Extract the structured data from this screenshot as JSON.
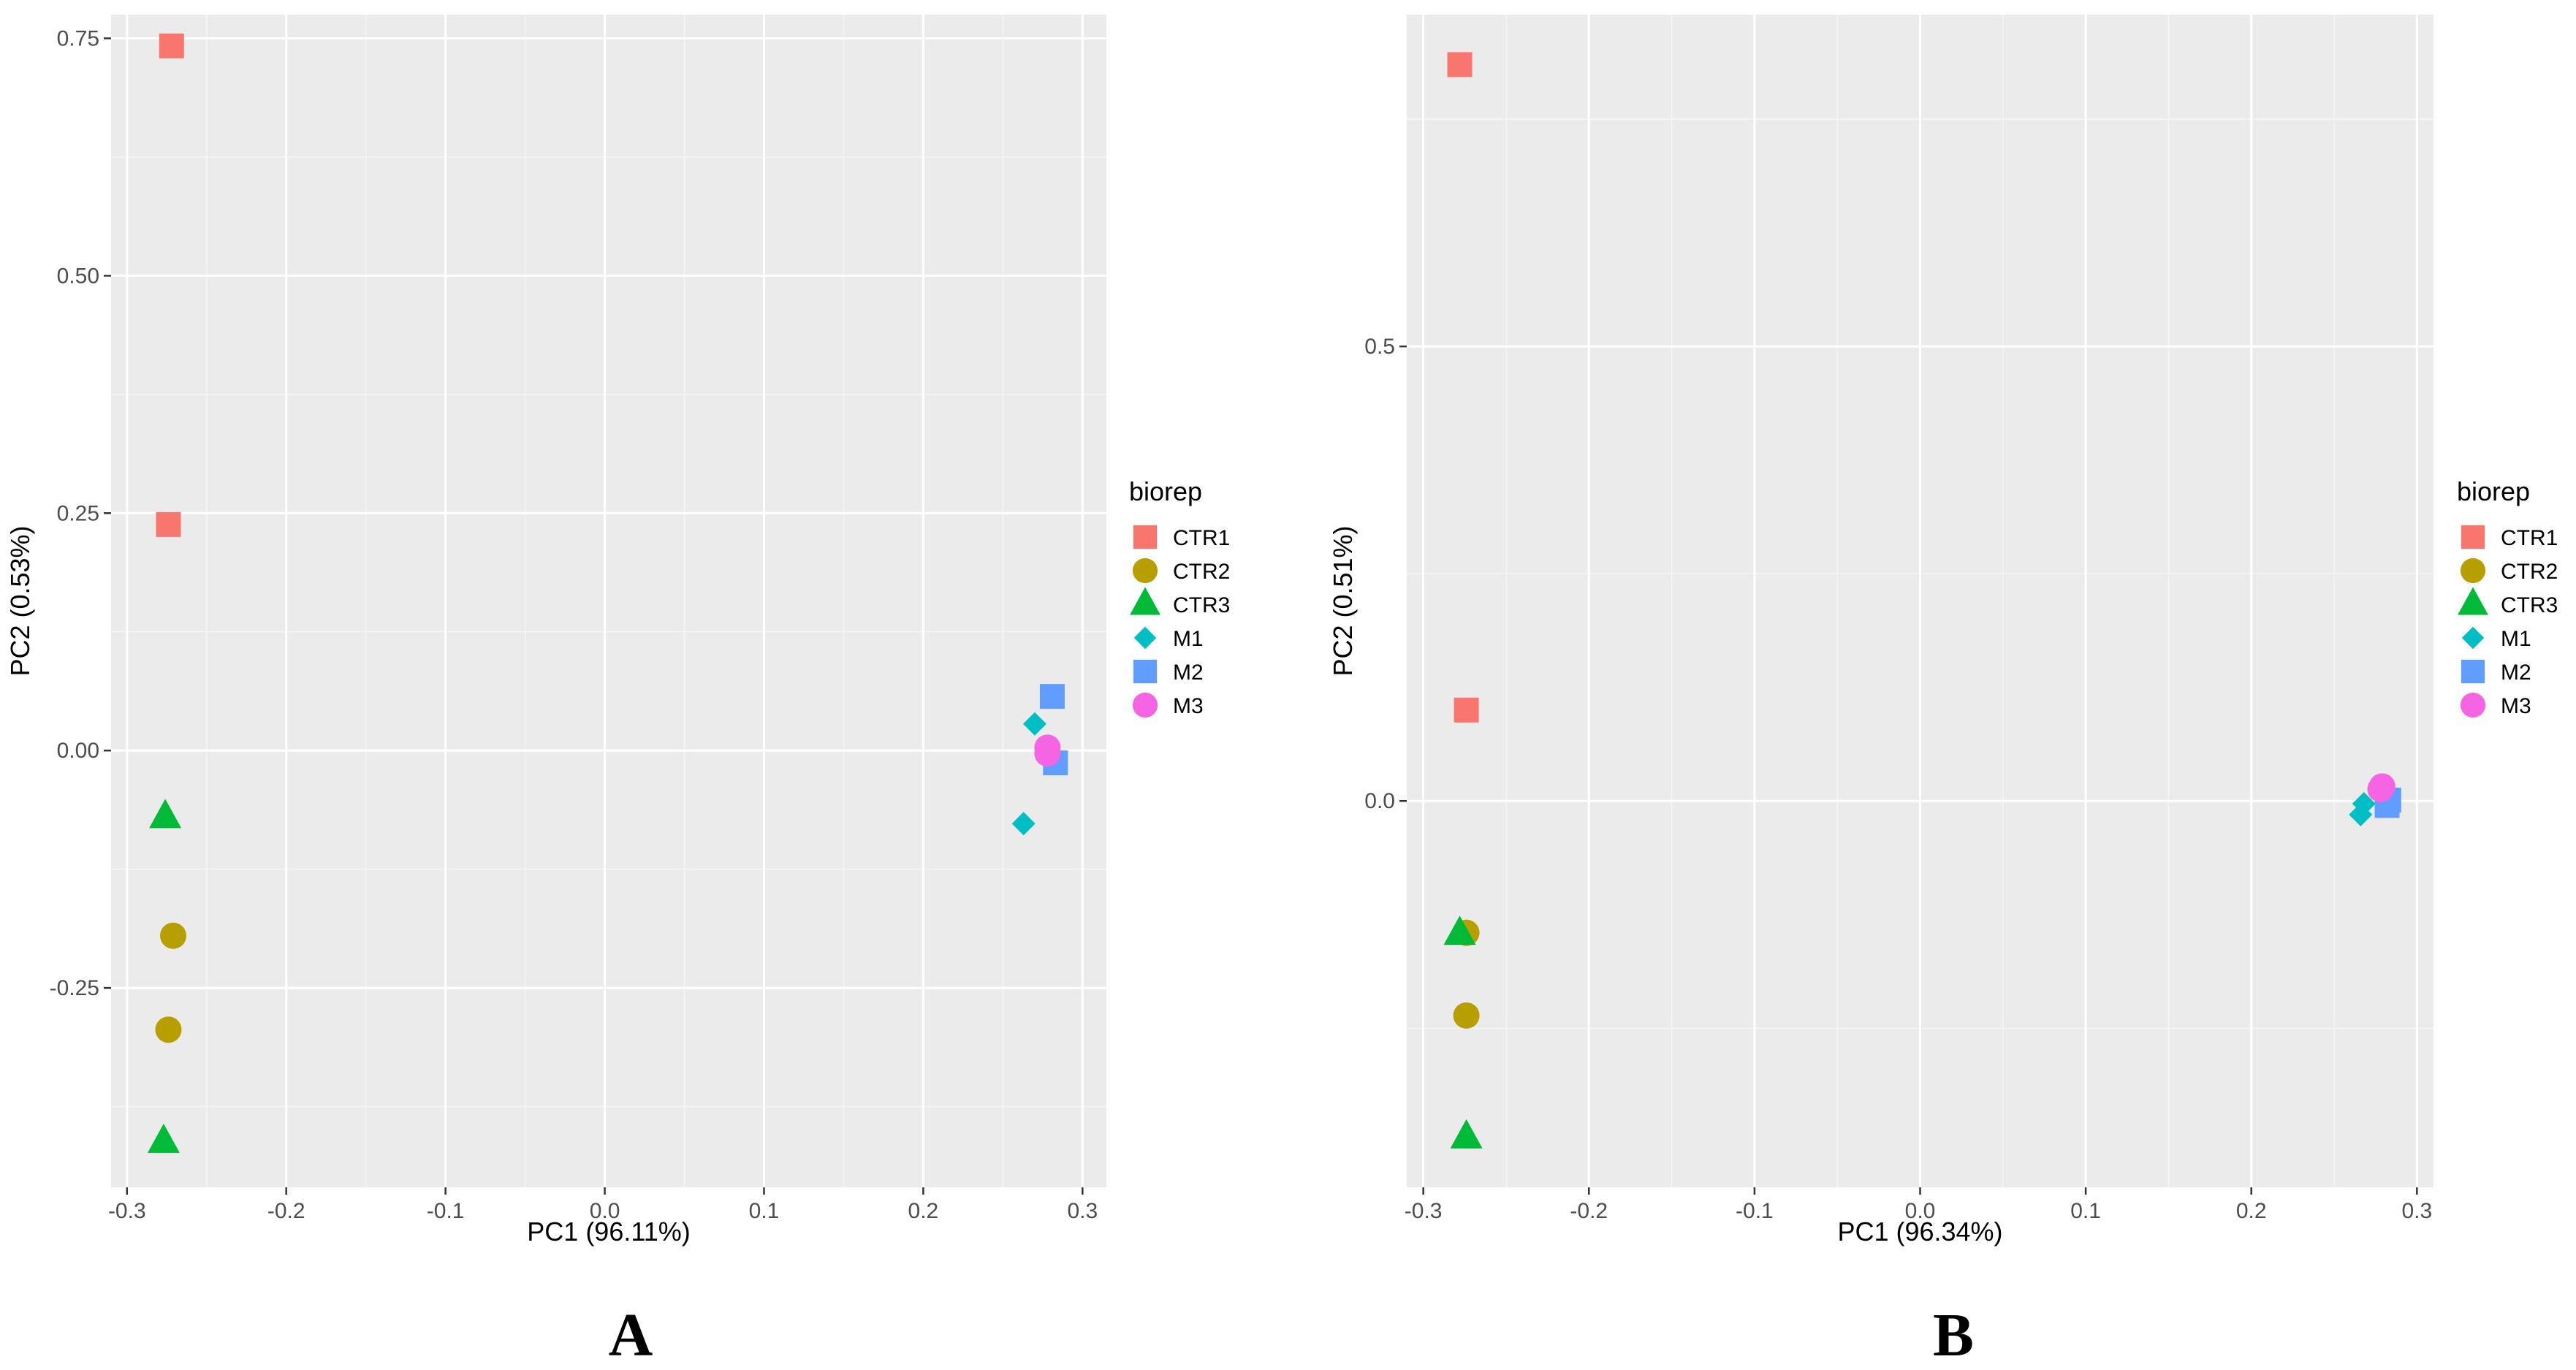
{
  "chart_data": [
    {
      "type": "scatter",
      "panel_label": "A",
      "xlabel": "PC1 (96.11%)",
      "ylabel": "PC2 (0.53%)",
      "xlim": [
        -0.31,
        0.315
      ],
      "ylim": [
        -0.46,
        0.775
      ],
      "xticks": [
        -0.3,
        -0.2,
        -0.1,
        0.0,
        0.1,
        0.2,
        0.3
      ],
      "xtick_labels": [
        "-0.3",
        "-0.2",
        "-0.1",
        "0.0",
        "0.1",
        "0.2",
        "0.3"
      ],
      "yticks": [
        -0.25,
        0.0,
        0.25,
        0.5,
        0.75
      ],
      "ytick_labels": [
        "-0.25",
        "0.00",
        "0.25",
        "0.50",
        "0.75"
      ],
      "grid": true,
      "legend": {
        "title": "biorep",
        "position": "right",
        "entries": [
          {
            "label": "CTR1",
            "shape": "square",
            "color": "#F8766D"
          },
          {
            "label": "CTR2",
            "shape": "circle",
            "color": "#B79F00"
          },
          {
            "label": "CTR3",
            "shape": "triangle",
            "color": "#00BA38"
          },
          {
            "label": "M1",
            "shape": "diamond",
            "color": "#00BFC4"
          },
          {
            "label": "M2",
            "shape": "square",
            "color": "#619CFF"
          },
          {
            "label": "M3",
            "shape": "circle",
            "color": "#F564E3"
          }
        ]
      },
      "series": [
        {
          "name": "CTR1",
          "points": [
            [
              -0.272,
              0.742
            ],
            [
              -0.274,
              0.238
            ]
          ]
        },
        {
          "name": "CTR2",
          "points": [
            [
              -0.271,
              -0.195
            ],
            [
              -0.274,
              -0.294
            ]
          ]
        },
        {
          "name": "CTR3",
          "points": [
            [
              -0.276,
              -0.07
            ],
            [
              -0.277,
              -0.412
            ]
          ]
        },
        {
          "name": "M1",
          "points": [
            [
              0.27,
              0.028
            ],
            [
              0.263,
              -0.077
            ]
          ]
        },
        {
          "name": "M2",
          "points": [
            [
              0.281,
              0.057
            ],
            [
              0.283,
              -0.013
            ]
          ]
        },
        {
          "name": "M3",
          "points": [
            [
              0.278,
              -0.003
            ],
            [
              0.278,
              0.003
            ]
          ]
        }
      ]
    },
    {
      "type": "scatter",
      "panel_label": "B",
      "xlabel": "PC1 (96.34%)",
      "ylabel": "PC2 (0.51%)",
      "xlim": [
        -0.31,
        0.31
      ],
      "ylim": [
        -0.425,
        0.865
      ],
      "xticks": [
        -0.3,
        -0.2,
        -0.1,
        0.0,
        0.1,
        0.2,
        0.3
      ],
      "xtick_labels": [
        "-0.3",
        "-0.2",
        "-0.1",
        "0.0",
        "0.1",
        "0.2",
        "0.3"
      ],
      "yticks": [
        0.0,
        0.5
      ],
      "ytick_labels": [
        "0.0",
        "0.5"
      ],
      "grid": true,
      "legend": {
        "title": "biorep",
        "position": "right",
        "entries": [
          {
            "label": "CTR1",
            "shape": "square",
            "color": "#F8766D"
          },
          {
            "label": "CTR2",
            "shape": "circle",
            "color": "#B79F00"
          },
          {
            "label": "CTR3",
            "shape": "triangle",
            "color": "#00BA38"
          },
          {
            "label": "M1",
            "shape": "diamond",
            "color": "#00BFC4"
          },
          {
            "label": "M2",
            "shape": "square",
            "color": "#619CFF"
          },
          {
            "label": "M3",
            "shape": "circle",
            "color": "#F564E3"
          }
        ]
      },
      "series": [
        {
          "name": "CTR1",
          "points": [
            [
              -0.278,
              0.81
            ],
            [
              -0.274,
              0.1
            ]
          ]
        },
        {
          "name": "CTR2",
          "points": [
            [
              -0.274,
              -0.145
            ],
            [
              -0.274,
              -0.236
            ]
          ]
        },
        {
          "name": "CTR3",
          "points": [
            [
              -0.278,
              -0.146
            ],
            [
              -0.274,
              -0.37
            ]
          ]
        },
        {
          "name": "M1",
          "points": [
            [
              0.268,
              -0.003
            ],
            [
              0.266,
              -0.015
            ]
          ]
        },
        {
          "name": "M2",
          "points": [
            [
              0.283,
              0.001
            ],
            [
              0.282,
              -0.005
            ]
          ]
        },
        {
          "name": "M3",
          "points": [
            [
              0.278,
              0.013
            ],
            [
              0.279,
              0.016
            ]
          ]
        }
      ]
    }
  ]
}
